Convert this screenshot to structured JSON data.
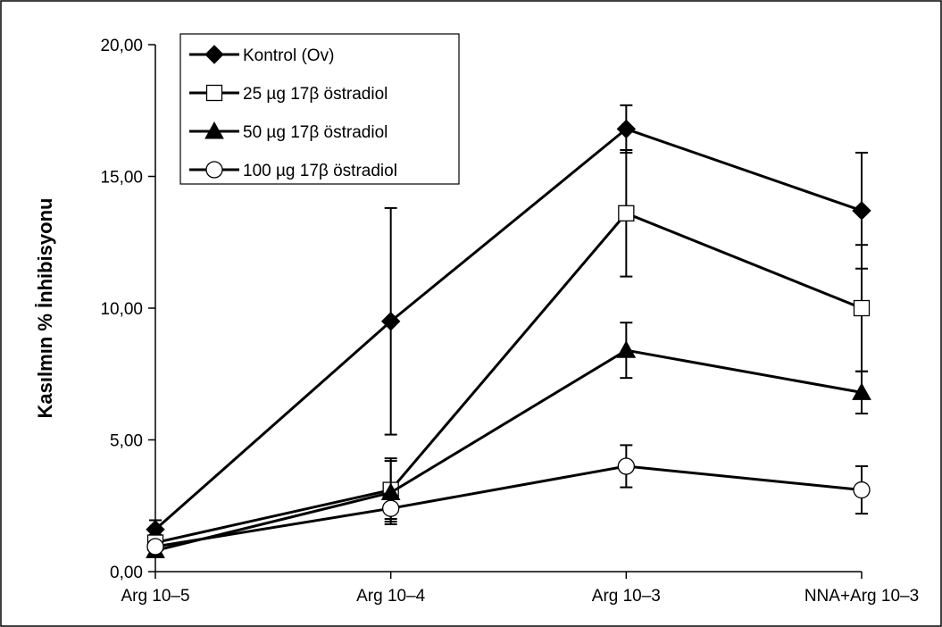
{
  "chart_data": {
    "type": "line",
    "title": "",
    "xlabel": "",
    "ylabel": "Kasılmın % İnhibisyonu",
    "categories": [
      "Arg 10–5",
      "Arg 10–4",
      "Arg 10–3",
      "NNA+Arg 10–3"
    ],
    "ylim": [
      0,
      20
    ],
    "yticks": [
      "0,00",
      "5,00",
      "10,00",
      "15,00",
      "20,00"
    ],
    "ytick_values": [
      0,
      5,
      10,
      15,
      20
    ],
    "grid": false,
    "legend_position": "top-left",
    "series": [
      {
        "name": "Kontrol (Ov)",
        "marker": "diamond-filled",
        "values": [
          1.6,
          9.5,
          16.8,
          13.7
        ],
        "error": [
          0.35,
          4.3,
          0.9,
          2.2
        ]
      },
      {
        "name": "25 µg 17β östradiol",
        "marker": "square-open",
        "values": [
          1.1,
          3.1,
          13.6,
          10.0
        ],
        "error": [
          0.3,
          1.2,
          2.4,
          2.4
        ]
      },
      {
        "name": "50 µg 17β östradiol",
        "marker": "triangle-filled",
        "values": [
          0.8,
          3.0,
          8.4,
          6.8
        ],
        "error": [
          0.25,
          1.2,
          1.05,
          0.8
        ]
      },
      {
        "name": "100 µg 17β östradiol",
        "marker": "circle-open",
        "values": [
          0.95,
          2.4,
          4.0,
          3.1
        ],
        "error": [
          0.2,
          0.4,
          0.8,
          0.9
        ]
      }
    ]
  }
}
